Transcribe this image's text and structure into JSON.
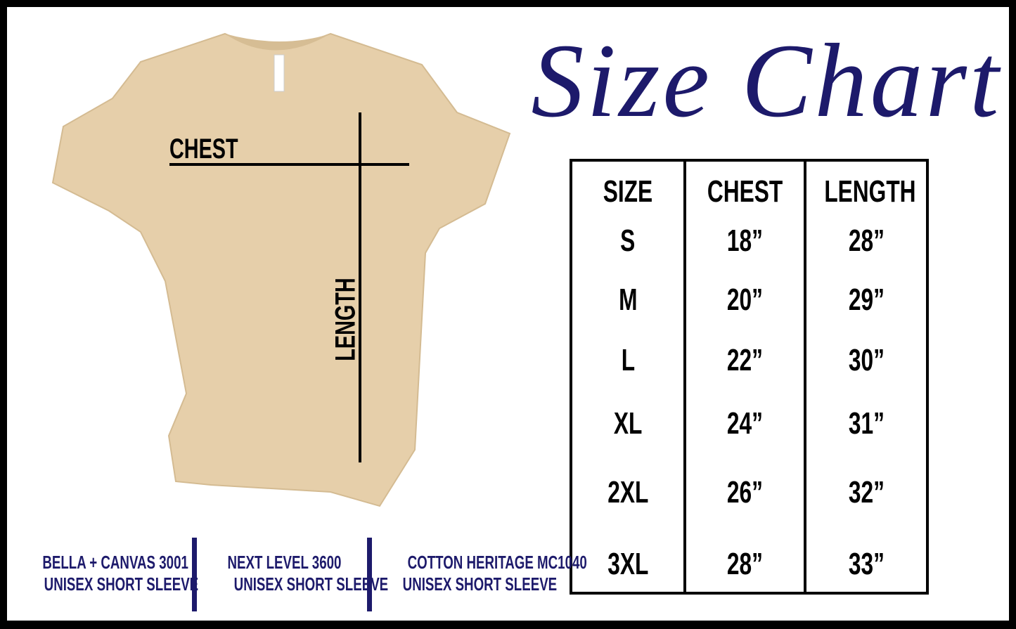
{
  "title": "Size Chart",
  "colors": {
    "accent": "#1d1a6b",
    "shirt": "#e6cfaa"
  },
  "shirt_labels": {
    "chest": "CHEST",
    "length": "LENGTH"
  },
  "table": {
    "headers": [
      "SIZE",
      "CHEST",
      "LENGTH"
    ],
    "rows": [
      [
        "S",
        "18”",
        "28”"
      ],
      [
        "M",
        "20”",
        "29”"
      ],
      [
        "L",
        "22”",
        "30”"
      ],
      [
        "XL",
        "24”",
        "31”"
      ],
      [
        "2XL",
        "26”",
        "32”"
      ],
      [
        "3XL",
        "28”",
        "33”"
      ]
    ]
  },
  "brands": [
    {
      "line1": "BELLA + CANVAS 3001",
      "line2": "UNISEX SHORT SLEEVE"
    },
    {
      "line1": "NEXT LEVEL 3600",
      "line2": "UNISEX SHORT SLEEVE"
    },
    {
      "line1": "COTTON HERITAGE MC1040",
      "line2": "UNISEX SHORT SLEEVE"
    }
  ]
}
